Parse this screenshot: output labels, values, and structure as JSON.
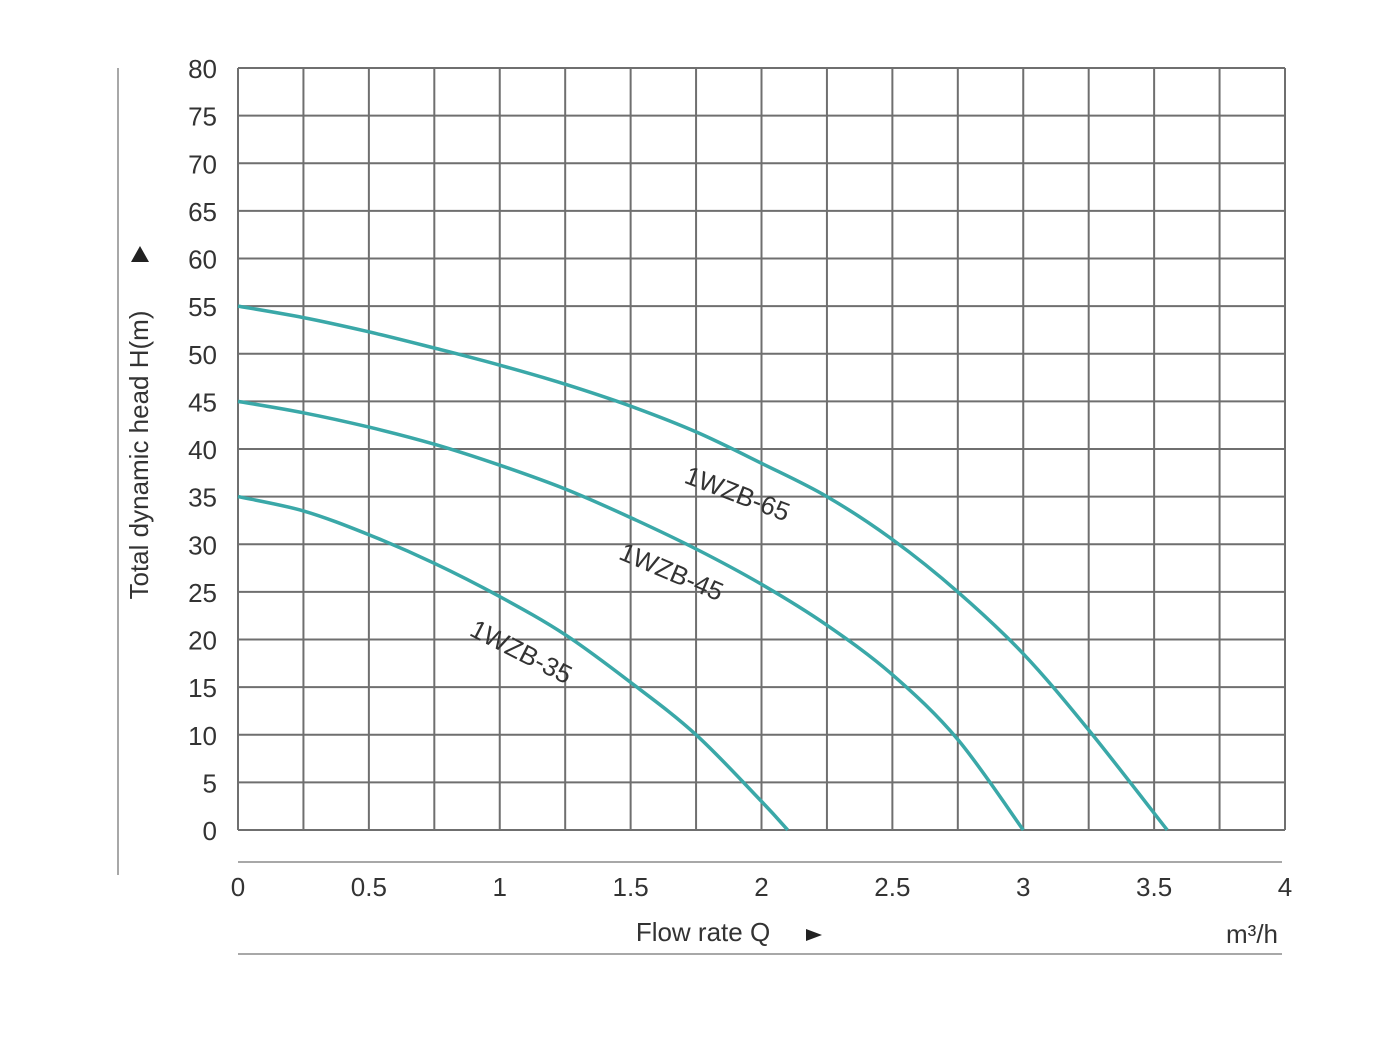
{
  "chart_data": {
    "type": "line",
    "xlabel": "Flow rate Q",
    "ylabel": "Total dynamic head H(m)",
    "x_unit": "m³/h",
    "xlim": [
      0,
      4
    ],
    "ylim": [
      0,
      80
    ],
    "x_ticks": [
      "0",
      "0.5",
      "1",
      "1.5",
      "2",
      "2.5",
      "3",
      "3.5",
      "4"
    ],
    "y_ticks": [
      "0",
      "5",
      "10",
      "15",
      "20",
      "25",
      "30",
      "35",
      "40",
      "45",
      "50",
      "55",
      "60",
      "65",
      "70",
      "75",
      "80"
    ],
    "grid": true,
    "series": [
      {
        "name": "1WZB-35",
        "color": "#3aa8a8",
        "x": [
          0,
          0.25,
          0.5,
          0.75,
          1.0,
          1.25,
          1.5,
          1.75,
          2.0,
          2.1
        ],
        "y": [
          35,
          33.5,
          31,
          28,
          24.5,
          20.5,
          15.5,
          10,
          3,
          0
        ]
      },
      {
        "name": "1WZB-45",
        "color": "#3aa8a8",
        "x": [
          0,
          0.25,
          0.5,
          0.75,
          1.0,
          1.25,
          1.5,
          1.75,
          2.0,
          2.25,
          2.5,
          2.75,
          3.0
        ],
        "y": [
          45,
          43.8,
          42.3,
          40.5,
          38.3,
          35.8,
          32.8,
          29.5,
          25.8,
          21.5,
          16.3,
          9.5,
          0
        ]
      },
      {
        "name": "1WZB-65",
        "color": "#3aa8a8",
        "x": [
          0,
          0.25,
          0.5,
          0.75,
          1.0,
          1.25,
          1.5,
          1.75,
          2.0,
          2.25,
          2.5,
          2.75,
          3.0,
          3.25,
          3.55
        ],
        "y": [
          55,
          53.8,
          52.3,
          50.6,
          48.8,
          46.8,
          44.5,
          41.8,
          38.5,
          35,
          30.5,
          25,
          18.5,
          10.5,
          0
        ]
      }
    ],
    "annotations": [
      "1WZB-65",
      "1WZB-45",
      "1WZB-35"
    ]
  }
}
